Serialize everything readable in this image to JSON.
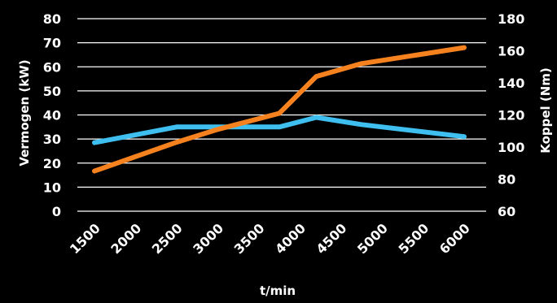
{
  "chart_data": {
    "type": "line",
    "xlabel": "t/min",
    "ylabel_left": "Vermogen (kW)",
    "ylabel_right": "Koppel (Nm)",
    "x": [
      1500,
      2000,
      2500,
      3000,
      3500,
      4000,
      4500,
      5000,
      5500,
      6000
    ],
    "x_tick_labels": [
      "1500",
      "2000",
      "2500",
      "3000",
      "3500",
      "4000",
      "4500",
      "5000",
      "5500",
      "6000"
    ],
    "ylim_left": [
      0,
      80
    ],
    "y_ticks_left": [
      "0",
      "10",
      "20",
      "30",
      "40",
      "50",
      "60",
      "70",
      "80"
    ],
    "ylim_right": [
      60,
      180
    ],
    "y_ticks_right": [
      "60",
      "80",
      "100",
      "120",
      "140",
      "160",
      "180"
    ],
    "grid": true,
    "series": [
      {
        "axis": "left",
        "color": "#3fbfef",
        "x": [
          1500,
          2500,
          3000,
          3750,
          4200,
          4750,
          6000
        ],
        "values": [
          28.5,
          35,
          35,
          35,
          39,
          36,
          31
        ]
      },
      {
        "axis": "right",
        "color": "#f5821f",
        "x": [
          1500,
          2500,
          3000,
          3750,
          4200,
          4750,
          6000
        ],
        "values": [
          85,
          103,
          111,
          121,
          144,
          152,
          162
        ]
      }
    ]
  }
}
